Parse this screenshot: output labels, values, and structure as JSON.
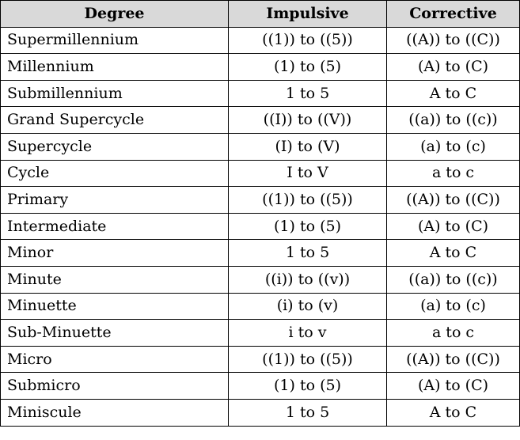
{
  "table": {
    "headers": [
      "Degree",
      "Impulsive",
      "Corrective"
    ],
    "rows": [
      [
        "Supermillennium",
        "((1)) to ((5))",
        "((A)) to ((C))"
      ],
      [
        "Millennium",
        "(1) to (5)",
        "(A) to (C)"
      ],
      [
        "Submillennium",
        "1 to 5",
        "A to C"
      ],
      [
        "Grand Supercycle",
        "((I)) to ((V))",
        "((a)) to ((c))"
      ],
      [
        "Supercycle",
        "(I) to (V)",
        "(a) to (c)"
      ],
      [
        "Cycle",
        "I to V",
        "a to c"
      ],
      [
        "Primary",
        "((1)) to ((5))",
        "((A)) to ((C))"
      ],
      [
        "Intermediate",
        "(1) to (5)",
        "(A) to (C)"
      ],
      [
        "Minor",
        "1 to 5",
        "A to C"
      ],
      [
        "Minute",
        "((i)) to ((v))",
        "((a)) to ((c))"
      ],
      [
        "Minuette",
        "(i) to (v)",
        "(a) to (c)"
      ],
      [
        "Sub-Minuette",
        "i to v",
        "a to c"
      ],
      [
        "Micro",
        "((1)) to ((5))",
        "((A)) to ((C))"
      ],
      [
        "Submicro",
        "(1) to (5)",
        "(A) to (C)"
      ],
      [
        "Miniscule",
        "1 to 5",
        "A to C"
      ]
    ]
  },
  "colors": {
    "header_background": "#d9d9d9",
    "border": "#000000",
    "text": "#000000"
  }
}
